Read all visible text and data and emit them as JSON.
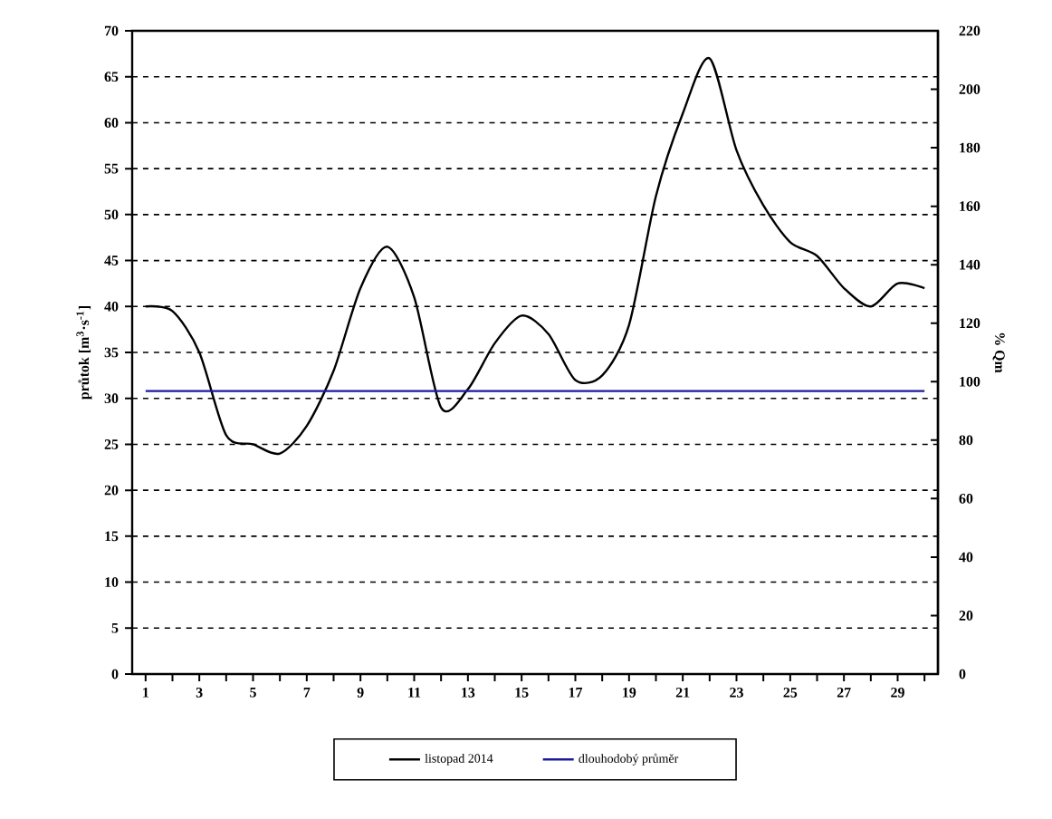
{
  "chart_data": {
    "type": "line",
    "xlabel": null,
    "ylabel": "průtok [m$^{3}$·s$^{-1}$]",
    "y2label": "% Qm",
    "x": [
      1,
      2,
      3,
      4,
      5,
      6,
      7,
      8,
      9,
      10,
      11,
      12,
      13,
      14,
      15,
      16,
      17,
      18,
      19,
      20,
      21,
      22,
      23,
      24,
      25,
      26,
      27,
      28,
      29,
      30
    ],
    "series": [
      {
        "name": "listopad 2014",
        "color": "#000000",
        "values": [
          40,
          39.5,
          35,
          26,
          25,
          24,
          27,
          33,
          42,
          46.5,
          41,
          29,
          31,
          36,
          39,
          37,
          32,
          32.5,
          38,
          52,
          61,
          67,
          57,
          51,
          47,
          45.5,
          42,
          40,
          42.5,
          42
        ]
      },
      {
        "name": "dlouhodobý průměr",
        "color": "#1a1aa0",
        "values": [
          30.8,
          30.8,
          30.8,
          30.8,
          30.8,
          30.8,
          30.8,
          30.8,
          30.8,
          30.8,
          30.8,
          30.8,
          30.8,
          30.8,
          30.8,
          30.8,
          30.8,
          30.8,
          30.8,
          30.8,
          30.8,
          30.8,
          30.8,
          30.8,
          30.8,
          30.8,
          30.8,
          30.8,
          30.8,
          30.8
        ]
      }
    ],
    "xlim": [
      0.5,
      30.5
    ],
    "xticks": [
      1,
      {
        "value": 2,
        "label": null
      },
      3,
      {
        "value": 4,
        "label": null
      },
      5,
      {
        "value": 6,
        "label": null
      },
      7,
      {
        "value": 8,
        "label": null
      },
      9,
      {
        "value": 10,
        "label": null
      },
      11,
      {
        "value": 12,
        "label": null
      },
      13,
      {
        "value": 14,
        "label": null
      },
      15,
      {
        "value": 16,
        "label": null
      },
      17,
      {
        "value": 18,
        "label": null
      },
      19,
      {
        "value": 20,
        "label": null
      },
      21,
      {
        "value": 22,
        "label": null
      },
      23,
      {
        "value": 24,
        "label": null
      },
      25,
      {
        "value": 26,
        "label": null
      },
      27,
      {
        "value": 28,
        "label": null
      },
      29,
      {
        "value": 30,
        "label": null
      }
    ],
    "ylim": [
      0,
      70
    ],
    "yticks": [
      0,
      5,
      10,
      15,
      20,
      25,
      30,
      35,
      40,
      45,
      50,
      55,
      60,
      65,
      70
    ],
    "y2lim": [
      0,
      220
    ],
    "y2ticks": [
      0,
      20,
      40,
      60,
      80,
      100,
      120,
      140,
      160,
      180,
      200,
      220
    ],
    "grid": "y",
    "legend": "bottom",
    "line_style": "solid"
  }
}
